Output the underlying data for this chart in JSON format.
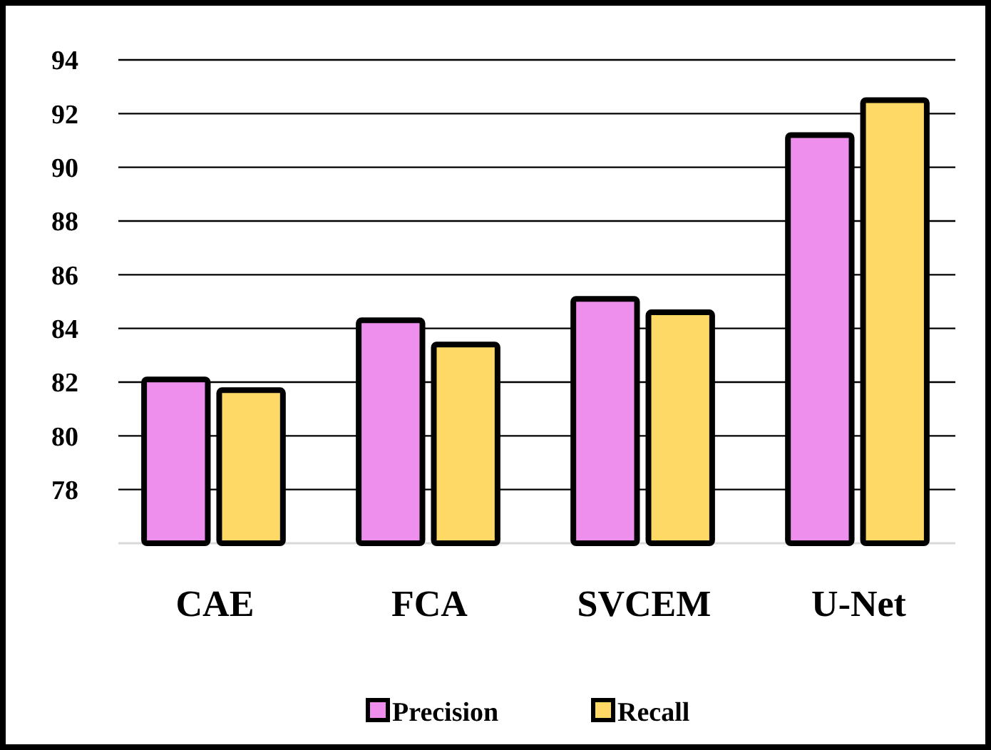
{
  "chart_data": {
    "type": "bar",
    "categories": [
      "CAE",
      "FCA",
      "SVCEM",
      "U-Net"
    ],
    "series": [
      {
        "name": "Precision",
        "color": "#ee8fee",
        "values": [
          82.1,
          84.3,
          85.1,
          91.2
        ]
      },
      {
        "name": "Recall",
        "color": "#ffd966",
        "values": [
          81.7,
          83.4,
          84.6,
          92.5
        ]
      }
    ],
    "ylim": [
      76,
      94
    ],
    "yticks": [
      78,
      80,
      82,
      84,
      86,
      88,
      90,
      92,
      94
    ],
    "grid": "y",
    "legend": "bottom"
  }
}
